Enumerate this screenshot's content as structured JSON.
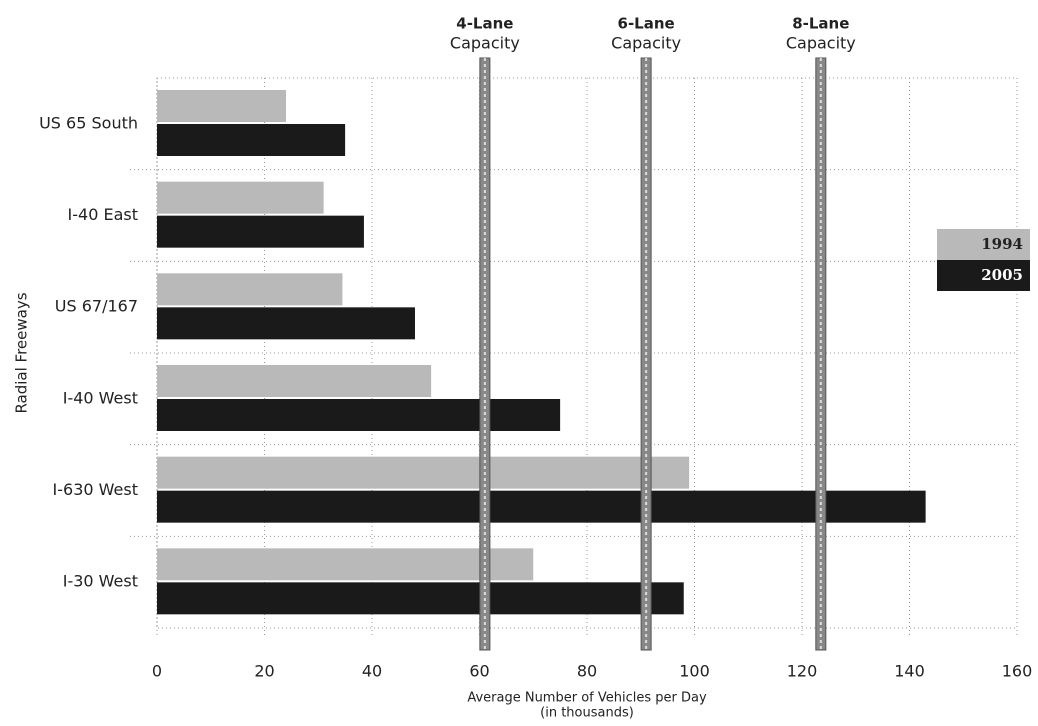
{
  "chart_data": {
    "type": "bar",
    "orientation": "horizontal",
    "y_label": "Radial Freeways",
    "x_label": "Average Number of Vehicles per Day",
    "x_sublabel": "(in thousands)",
    "categories": [
      "US 65 South",
      "I-40 East",
      "US 67/167",
      "I-40 West",
      "I-630 West",
      "I-30 West"
    ],
    "series": [
      {
        "name": "1994",
        "color": "#b9b9b9",
        "values": [
          24,
          31,
          34.5,
          51,
          99,
          70
        ]
      },
      {
        "name": "2005",
        "color": "#1a1a1a",
        "values": [
          35,
          38.5,
          48,
          75,
          143,
          98
        ]
      }
    ],
    "xlim": [
      0,
      160
    ],
    "xticks": [
      0,
      20,
      40,
      60,
      80,
      100,
      120,
      140,
      160
    ],
    "grid": true,
    "legend": "right",
    "annotations": [
      {
        "label": "4-Lane",
        "sublabel": "Capacity",
        "value": 61
      },
      {
        "label": "6-Lane",
        "sublabel": "Capacity",
        "value": 91
      },
      {
        "label": "8-Lane",
        "sublabel": "Capacity",
        "value": 123.5
      }
    ]
  }
}
